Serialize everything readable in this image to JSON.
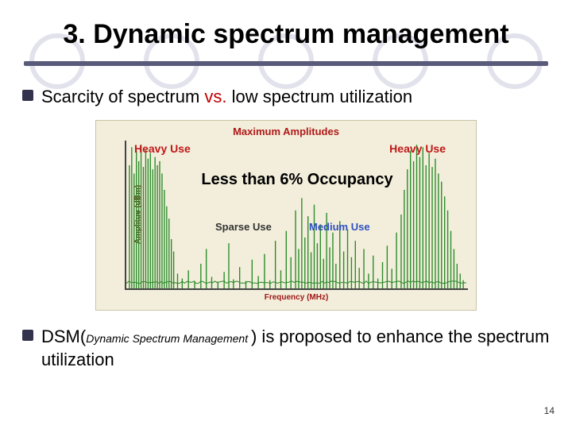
{
  "title": "3. Dynamic spectrum management",
  "bullet1": {
    "pre": "Scarcity of spectrum ",
    "vs": "vs.",
    "post": " low spectrum utilization"
  },
  "bullet2": {
    "dsm": "DSM",
    "paren_open": "(",
    "sub": "Dynamic Spectrum Management ",
    "paren_close": ")",
    "tail": " is proposed to enhance the spectrum utilization"
  },
  "page_number": "14",
  "chart": {
    "type": "line-spectrum",
    "title": "Maximum Amplitudes",
    "ylabel": "Amplitue (dBm)",
    "xlabel": "Frequency (MHz)",
    "background_color": "#f2eedb",
    "line_color": "#2a8a2a",
    "axis_color": "#444444",
    "title_color": "#b01818",
    "label_color": "#a01818",
    "title_fontsize": 13,
    "label_fontsize": 10,
    "xlim": [
      0,
      440
    ],
    "ylim": [
      0,
      180
    ],
    "overlays": {
      "heavy_use_left": {
        "text": "Heavy Use",
        "color": "#c01818",
        "fontsize": 14
      },
      "heavy_use_right": {
        "text": "Heavy Use",
        "color": "#c01818",
        "fontsize": 14
      },
      "occupancy": {
        "text": "Less than 6% Occupancy",
        "color": "#000000",
        "fontsize": 20
      },
      "sparse_use": {
        "text": "Sparse Use",
        "color": "#333333",
        "fontsize": 13
      },
      "medium_use": {
        "text": "Medium Use",
        "color": "#3050c0",
        "fontsize": 13
      }
    },
    "spikes": [
      {
        "x": 4,
        "h": 150
      },
      {
        "x": 7,
        "h": 172
      },
      {
        "x": 10,
        "h": 140
      },
      {
        "x": 13,
        "h": 168
      },
      {
        "x": 16,
        "h": 155
      },
      {
        "x": 19,
        "h": 175
      },
      {
        "x": 22,
        "h": 148
      },
      {
        "x": 25,
        "h": 170
      },
      {
        "x": 28,
        "h": 158
      },
      {
        "x": 31,
        "h": 165
      },
      {
        "x": 34,
        "h": 145
      },
      {
        "x": 37,
        "h": 160
      },
      {
        "x": 40,
        "h": 150
      },
      {
        "x": 43,
        "h": 155
      },
      {
        "x": 46,
        "h": 140
      },
      {
        "x": 49,
        "h": 120
      },
      {
        "x": 52,
        "h": 100
      },
      {
        "x": 55,
        "h": 85
      },
      {
        "x": 58,
        "h": 60
      },
      {
        "x": 61,
        "h": 45
      },
      {
        "x": 66,
        "h": 18
      },
      {
        "x": 72,
        "h": 12
      },
      {
        "x": 80,
        "h": 22
      },
      {
        "x": 88,
        "h": 9
      },
      {
        "x": 96,
        "h": 30
      },
      {
        "x": 103,
        "h": 48
      },
      {
        "x": 110,
        "h": 14
      },
      {
        "x": 118,
        "h": 8
      },
      {
        "x": 126,
        "h": 20
      },
      {
        "x": 132,
        "h": 55
      },
      {
        "x": 138,
        "h": 11
      },
      {
        "x": 146,
        "h": 26
      },
      {
        "x": 154,
        "h": 9
      },
      {
        "x": 162,
        "h": 35
      },
      {
        "x": 170,
        "h": 15
      },
      {
        "x": 178,
        "h": 42
      },
      {
        "x": 185,
        "h": 10
      },
      {
        "x": 192,
        "h": 58
      },
      {
        "x": 199,
        "h": 22
      },
      {
        "x": 206,
        "h": 70
      },
      {
        "x": 212,
        "h": 38
      },
      {
        "x": 218,
        "h": 95
      },
      {
        "x": 222,
        "h": 48
      },
      {
        "x": 226,
        "h": 110
      },
      {
        "x": 230,
        "h": 62
      },
      {
        "x": 234,
        "h": 88
      },
      {
        "x": 238,
        "h": 44
      },
      {
        "x": 242,
        "h": 102
      },
      {
        "x": 246,
        "h": 55
      },
      {
        "x": 250,
        "h": 78
      },
      {
        "x": 254,
        "h": 36
      },
      {
        "x": 258,
        "h": 92
      },
      {
        "x": 262,
        "h": 50
      },
      {
        "x": 266,
        "h": 68
      },
      {
        "x": 270,
        "h": 30
      },
      {
        "x": 275,
        "h": 82
      },
      {
        "x": 280,
        "h": 45
      },
      {
        "x": 285,
        "h": 72
      },
      {
        "x": 290,
        "h": 38
      },
      {
        "x": 295,
        "h": 58
      },
      {
        "x": 300,
        "h": 25
      },
      {
        "x": 306,
        "h": 48
      },
      {
        "x": 312,
        "h": 18
      },
      {
        "x": 318,
        "h": 40
      },
      {
        "x": 324,
        "h": 12
      },
      {
        "x": 330,
        "h": 32
      },
      {
        "x": 336,
        "h": 52
      },
      {
        "x": 342,
        "h": 24
      },
      {
        "x": 348,
        "h": 68
      },
      {
        "x": 354,
        "h": 90
      },
      {
        "x": 358,
        "h": 120
      },
      {
        "x": 362,
        "h": 145
      },
      {
        "x": 366,
        "h": 168
      },
      {
        "x": 370,
        "h": 155
      },
      {
        "x": 374,
        "h": 175
      },
      {
        "x": 378,
        "h": 160
      },
      {
        "x": 382,
        "h": 172
      },
      {
        "x": 386,
        "h": 150
      },
      {
        "x": 390,
        "h": 165
      },
      {
        "x": 394,
        "h": 148
      },
      {
        "x": 398,
        "h": 158
      },
      {
        "x": 402,
        "h": 140
      },
      {
        "x": 406,
        "h": 130
      },
      {
        "x": 410,
        "h": 112
      },
      {
        "x": 414,
        "h": 95
      },
      {
        "x": 418,
        "h": 70
      },
      {
        "x": 422,
        "h": 48
      },
      {
        "x": 426,
        "h": 30
      },
      {
        "x": 430,
        "h": 18
      },
      {
        "x": 434,
        "h": 10
      }
    ],
    "baseline_noise": 6
  },
  "colors": {
    "circle_border": "#e2e2ec",
    "divider": "#5a5a7a",
    "bullet": "#33334d",
    "vs_red": "#c00000"
  }
}
